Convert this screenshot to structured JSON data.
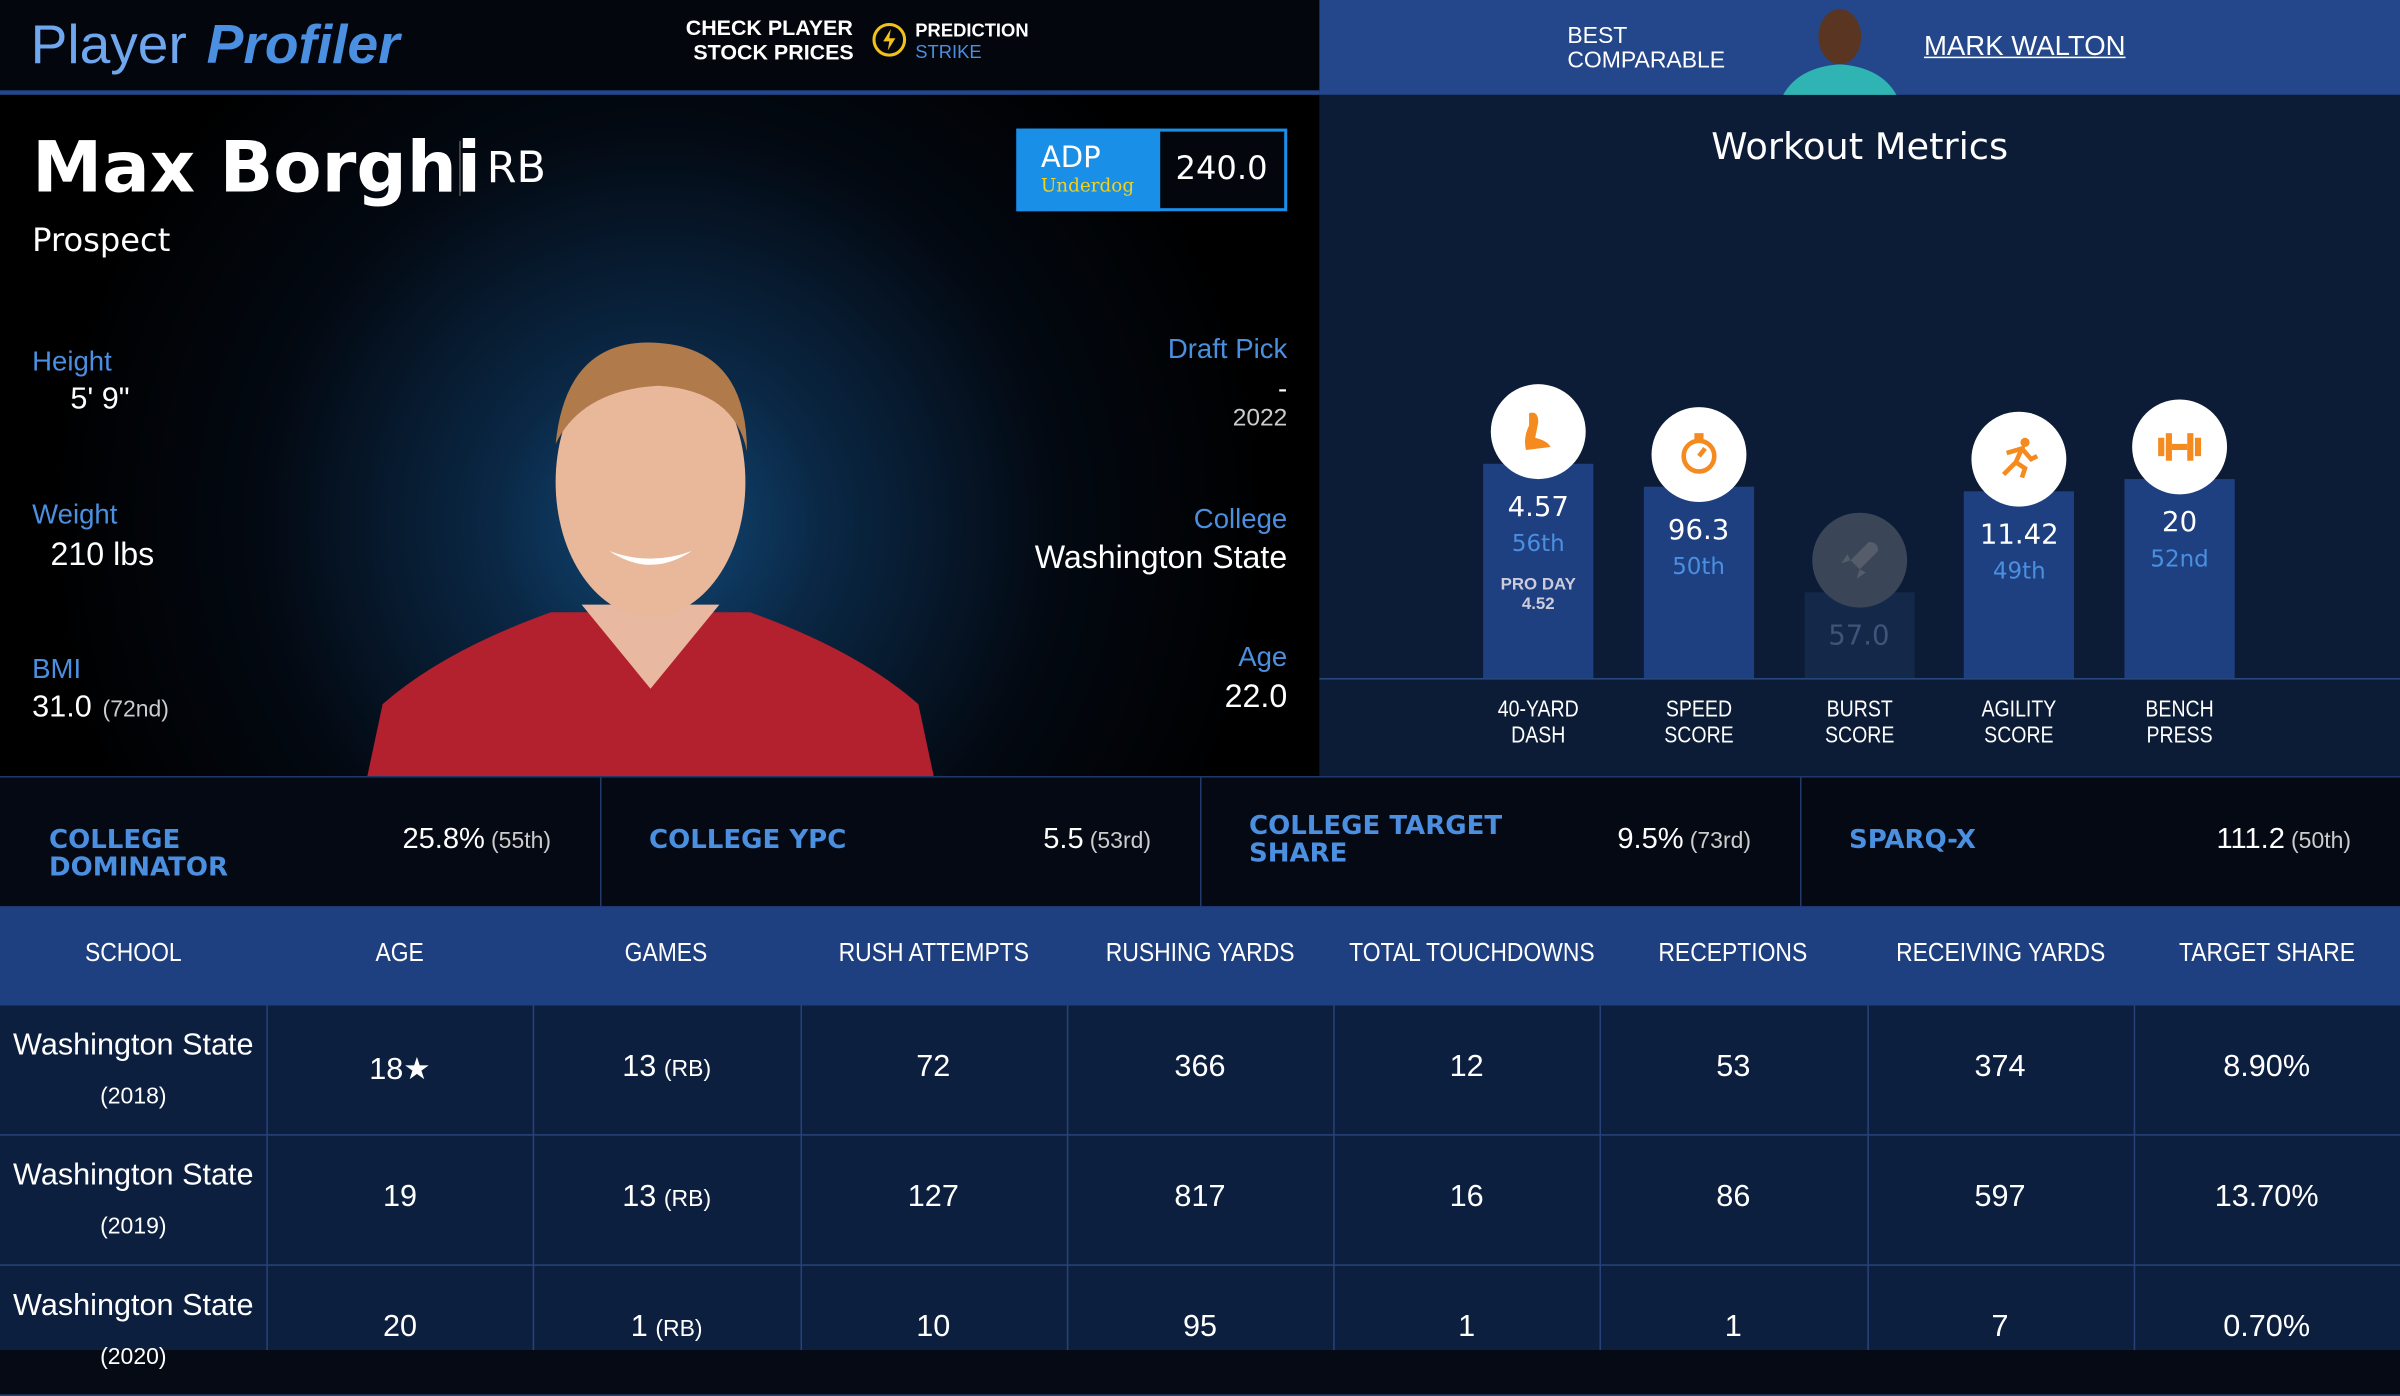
{
  "header": {
    "logo_a": "Player",
    "logo_b": "Profiler",
    "promo_line1": "CHECK PLAYER",
    "promo_line2": "STOCK PRICES",
    "promo_brand1": "PREDICTION",
    "promo_brand2": "STRIKE",
    "comparable_line1": "BEST",
    "comparable_line2": "COMPARABLE",
    "comparable_name": "MARK WALTON"
  },
  "profile": {
    "name": "Max Borghi",
    "position": "RB",
    "status": "Prospect",
    "adp_label": "ADP",
    "adp_source": "Underdog",
    "adp_value": "240.0",
    "height_label": "Height",
    "height": "5' 9\"",
    "weight_label": "Weight",
    "weight": "210 lbs",
    "bmi_label": "BMI",
    "bmi": "31.0",
    "bmi_rank": "(72nd)",
    "draft_label": "Draft Pick",
    "draft_pick": "-",
    "draft_year": "2022",
    "college_label": "College",
    "college": "Washington State",
    "age_label": "Age",
    "age": "22.0"
  },
  "workout": {
    "title": "Workout Metrics",
    "metrics": [
      {
        "line1": "40-YARD",
        "line2": "DASH",
        "value": "4.57",
        "percentile": 56,
        "percentile_label": "56th",
        "extra1": "PRO DAY",
        "extra2": "4.52"
      },
      {
        "line1": "SPEED",
        "line2": "SCORE",
        "value": "96.3",
        "percentile": 50,
        "percentile_label": "50th"
      },
      {
        "line1": "BURST",
        "line2": "SCORE",
        "value": "57.0",
        "percentile": null
      },
      {
        "line1": "AGILITY",
        "line2": "SCORE",
        "value": "11.42",
        "percentile": 49,
        "percentile_label": "49th"
      },
      {
        "line1": "BENCH",
        "line2": "PRESS",
        "value": "20",
        "percentile": 52,
        "percentile_label": "52nd"
      }
    ]
  },
  "stats": [
    {
      "label": "COLLEGE DOMINATOR",
      "value": "25.8%",
      "rank": "(55th)"
    },
    {
      "label": "COLLEGE YPC",
      "value": "5.5",
      "rank": "(53rd)"
    },
    {
      "label": "COLLEGE TARGET SHARE",
      "value": "9.5%",
      "rank": "(73rd)"
    },
    {
      "label": "SPARQ-X",
      "value": "111.2",
      "rank": "(50th)"
    }
  ],
  "table": {
    "headers": [
      "SCHOOL",
      "AGE",
      "GAMES",
      "RUSH ATTEMPTS",
      "RUSHING YARDS",
      "TOTAL TOUCHDOWNS",
      "RECEPTIONS",
      "RECEIVING YARDS",
      "TARGET SHARE"
    ],
    "rows": [
      [
        {
          "text": "Washington State",
          "sub": "(2018)"
        },
        "18★",
        {
          "text": "13",
          "sub": "(RB)"
        },
        "72",
        "366",
        "12",
        "53",
        "374",
        "8.90%"
      ],
      [
        {
          "text": "Washington State",
          "sub": "(2019)"
        },
        "19",
        {
          "text": "13",
          "sub": "(RB)"
        },
        "127",
        "817",
        "16",
        "86",
        "597",
        "13.70%"
      ],
      [
        {
          "text": "Washington State",
          "sub": "(2020)"
        },
        "20",
        {
          "text": "1",
          "sub": "(RB)"
        },
        "10",
        "95",
        "1",
        "1",
        "7",
        "0.70%"
      ]
    ]
  }
}
